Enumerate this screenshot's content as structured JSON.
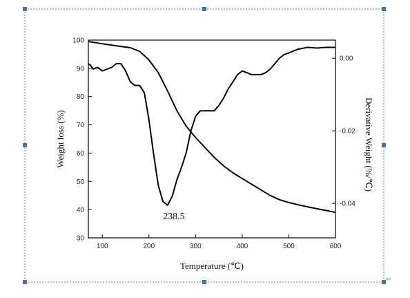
{
  "chart_data": {
    "type": "line",
    "xlabel": "Temperature (℃)",
    "ylabel_left": "Weight loss (%)",
    "ylabel_right": "Derivative Weight (%/℃)",
    "xlim": [
      70,
      600
    ],
    "ylim_left": [
      30,
      100
    ],
    "ylim_right": [
      -0.0495,
      0.005
    ],
    "x_ticks": [
      100,
      200,
      300,
      400,
      500,
      600
    ],
    "y_left_ticks": [
      30,
      40,
      50,
      60,
      70,
      80,
      90,
      100
    ],
    "y_right_ticks": [
      0.0,
      -0.02,
      -0.04
    ],
    "y_right_tick_labels": [
      "0.00",
      "-0.02",
      "-0.04"
    ],
    "grid": false,
    "legend": "none",
    "series": [
      {
        "axis": "left",
        "x": [
          70,
          100,
          130,
          160,
          180,
          200,
          220,
          240,
          260,
          280,
          300,
          320,
          340,
          360,
          380,
          400,
          420,
          440,
          460,
          480,
          500,
          520,
          540,
          560,
          580,
          600
        ],
        "y": [
          99.5,
          98.7,
          98.0,
          97.3,
          96.0,
          93.0,
          88.5,
          82.0,
          75.0,
          69.5,
          65.5,
          62.0,
          58.5,
          55.5,
          53.0,
          51.0,
          49.0,
          47.0,
          45.0,
          43.5,
          42.5,
          41.7,
          41.0,
          40.3,
          39.7,
          39.0
        ]
      },
      {
        "axis": "right",
        "x": [
          70,
          75,
          80,
          90,
          100,
          110,
          120,
          130,
          140,
          150,
          160,
          170,
          180,
          190,
          200,
          210,
          220,
          230,
          240,
          250,
          260,
          270,
          280,
          290,
          300,
          310,
          320,
          330,
          340,
          350,
          360,
          370,
          380,
          390,
          400,
          410,
          420,
          430,
          440,
          450,
          460,
          470,
          480,
          490,
          500,
          520,
          540,
          560,
          580,
          600
        ],
        "y": [
          -0.0015,
          -0.002,
          -0.003,
          -0.0025,
          -0.0035,
          -0.003,
          -0.0025,
          -0.0015,
          -0.0015,
          -0.0035,
          -0.0065,
          -0.0075,
          -0.0075,
          -0.0095,
          -0.017,
          -0.0265,
          -0.035,
          -0.0395,
          -0.0405,
          -0.038,
          -0.0335,
          -0.03,
          -0.026,
          -0.02,
          -0.016,
          -0.0145,
          -0.0145,
          -0.0145,
          -0.0145,
          -0.013,
          -0.011,
          -0.0085,
          -0.0065,
          -0.0045,
          -0.0035,
          -0.004,
          -0.0045,
          -0.0045,
          -0.0045,
          -0.004,
          -0.003,
          -0.0015,
          0.0,
          0.001,
          0.0015,
          0.0025,
          0.003,
          0.0028,
          0.003,
          0.003
        ]
      }
    ],
    "annotations": [
      {
        "text": "238.5",
        "x": 238.5,
        "y": -0.0405,
        "axis": "right"
      }
    ]
  }
}
